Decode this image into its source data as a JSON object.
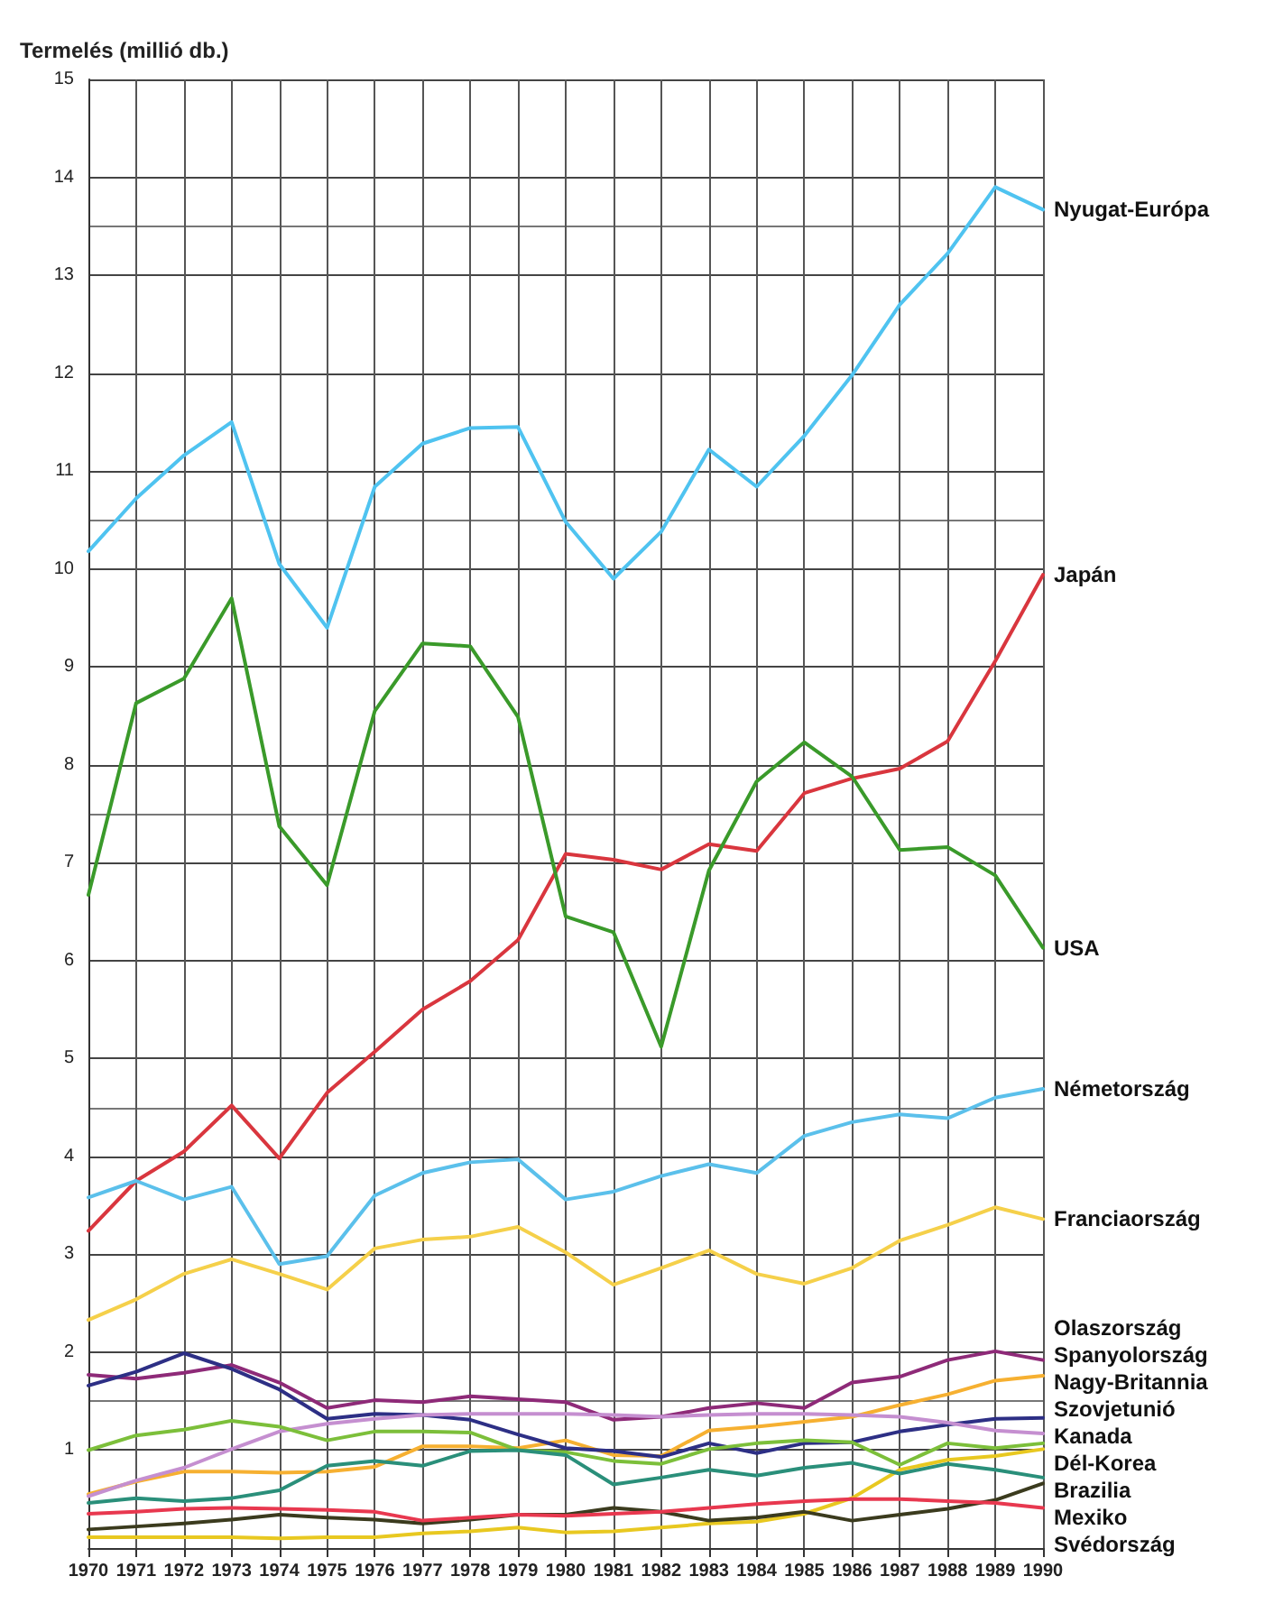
{
  "chart_data": {
    "type": "line",
    "ylabel": "Termelés (millió db.)",
    "x": [
      1970,
      1971,
      1972,
      1973,
      1974,
      1975,
      1976,
      1977,
      1978,
      1979,
      1980,
      1981,
      1982,
      1983,
      1984,
      1985,
      1986,
      1987,
      1988,
      1989,
      1990
    ],
    "xlim": [
      1970,
      1990
    ],
    "xticks": [
      1970,
      1971,
      1972,
      1973,
      1974,
      1975,
      1976,
      1977,
      1978,
      1979,
      1980,
      1981,
      1982,
      1983,
      1984,
      1985,
      1986,
      1987,
      1988,
      1989,
      1990
    ],
    "ylim": [
      0,
      15
    ],
    "yticks": [
      {
        "value": 0,
        "label": null
      },
      1,
      2,
      3,
      4,
      5,
      6,
      7,
      8,
      9,
      10,
      11,
      12,
      13,
      14,
      15
    ],
    "grid": true,
    "legend": false,
    "marker": "none",
    "line_style": "solid",
    "series": [
      {
        "name": "Nyugat-Európa",
        "color": "#4fc3f0",
        "values": [
          10.18,
          10.72,
          11.16,
          11.5,
          10.05,
          9.4,
          10.84,
          11.28,
          11.44,
          11.45,
          10.48,
          9.9,
          10.38,
          11.22,
          10.84,
          11.36,
          11.98,
          12.7,
          13.22,
          13.9,
          13.67
        ]
      },
      {
        "name": "Japán",
        "color": "#d9363e",
        "values": [
          3.24,
          3.75,
          4.05,
          4.52,
          3.98,
          4.65,
          5.07,
          5.5,
          5.79,
          6.21,
          7.09,
          7.03,
          6.93,
          7.19,
          7.12,
          7.71,
          7.86,
          7.96,
          8.24,
          9.06,
          9.94
        ]
      },
      {
        "name": "USA",
        "color": "#3a9a2a",
        "values": [
          6.67,
          8.63,
          8.88,
          9.7,
          7.37,
          6.77,
          8.55,
          9.24,
          9.21,
          8.49,
          6.45,
          6.29,
          5.12,
          6.92,
          7.83,
          8.23,
          7.88,
          7.13,
          7.16,
          6.87,
          6.13
        ]
      },
      {
        "name": "Németország",
        "color": "#5bc0eb",
        "values": [
          3.58,
          3.75,
          3.56,
          3.69,
          2.9,
          2.98,
          3.6,
          3.83,
          3.94,
          3.97,
          3.56,
          3.64,
          3.8,
          3.92,
          3.83,
          4.21,
          4.35,
          4.43,
          4.39,
          4.6,
          4.69
        ]
      },
      {
        "name": "Franciaország",
        "color": "#f5d04a",
        "values": [
          2.33,
          2.54,
          2.8,
          2.95,
          2.8,
          2.64,
          3.06,
          3.15,
          3.18,
          3.28,
          3.02,
          2.69,
          2.86,
          3.04,
          2.8,
          2.7,
          2.86,
          3.14,
          3.3,
          3.48,
          3.36
        ]
      },
      {
        "name": "Olaszország",
        "color": "#8e2a78",
        "values": [
          1.77,
          1.73,
          1.79,
          1.87,
          1.69,
          1.43,
          1.51,
          1.49,
          1.55,
          1.52,
          1.49,
          1.31,
          1.34,
          1.43,
          1.48,
          1.43,
          1.69,
          1.75,
          1.92,
          2.01,
          1.92
        ]
      },
      {
        "name": "Spanyolország",
        "color": "#f6b031",
        "values": [
          0.55,
          0.68,
          0.78,
          0.78,
          0.77,
          0.78,
          0.83,
          1.04,
          1.04,
          1.02,
          1.1,
          0.95,
          0.94,
          1.2,
          1.24,
          1.29,
          1.34,
          1.46,
          1.57,
          1.71,
          1.76
        ]
      },
      {
        "name": "Nagy-Britannia",
        "color": "#2d2f85",
        "values": [
          1.66,
          1.8,
          1.99,
          1.83,
          1.62,
          1.32,
          1.37,
          1.36,
          1.31,
          1.16,
          1.02,
          0.99,
          0.93,
          1.07,
          0.97,
          1.07,
          1.08,
          1.19,
          1.26,
          1.32,
          1.33
        ]
      },
      {
        "name": "Szovjetunió",
        "color": "#c58fd0",
        "values": [
          0.53,
          0.69,
          0.82,
          1.01,
          1.19,
          1.27,
          1.32,
          1.36,
          1.37,
          1.37,
          1.37,
          1.36,
          1.34,
          1.36,
          1.37,
          1.37,
          1.36,
          1.34,
          1.28,
          1.2,
          1.17
        ]
      },
      {
        "name": "Kanada",
        "color": "#7cbf3a",
        "values": [
          1.0,
          1.15,
          1.21,
          1.3,
          1.24,
          1.1,
          1.19,
          1.19,
          1.18,
          1.0,
          0.98,
          0.89,
          0.86,
          1.01,
          1.07,
          1.1,
          1.08,
          0.85,
          1.07,
          1.02,
          1.07
        ]
      },
      {
        "name": "Dél-Korea",
        "color": "#e8c820",
        "values": [
          0.11,
          0.11,
          0.11,
          0.11,
          0.1,
          0.11,
          0.11,
          0.15,
          0.17,
          0.21,
          0.16,
          0.17,
          0.21,
          0.25,
          0.27,
          0.35,
          0.51,
          0.8,
          0.9,
          0.94,
          1.01
        ]
      },
      {
        "name": "Brazilia",
        "color": "#2a8f7a",
        "values": [
          0.46,
          0.51,
          0.48,
          0.51,
          0.59,
          0.84,
          0.89,
          0.84,
          0.99,
          1.0,
          0.95,
          0.65,
          0.72,
          0.8,
          0.74,
          0.82,
          0.87,
          0.76,
          0.86,
          0.8,
          0.72
        ]
      },
      {
        "name": "Mexiko",
        "color": "#3b3b1e",
        "values": [
          0.19,
          0.22,
          0.25,
          0.29,
          0.34,
          0.31,
          0.29,
          0.25,
          0.29,
          0.34,
          0.34,
          0.41,
          0.37,
          0.28,
          0.31,
          0.37,
          0.28,
          0.34,
          0.4,
          0.49,
          0.66
        ]
      },
      {
        "name": "Svédország",
        "color": "#e8384f",
        "values": [
          0.35,
          0.37,
          0.4,
          0.41,
          0.4,
          0.39,
          0.37,
          0.28,
          0.31,
          0.34,
          0.33,
          0.35,
          0.37,
          0.41,
          0.45,
          0.48,
          0.5,
          0.5,
          0.48,
          0.46,
          0.41
        ]
      }
    ]
  }
}
